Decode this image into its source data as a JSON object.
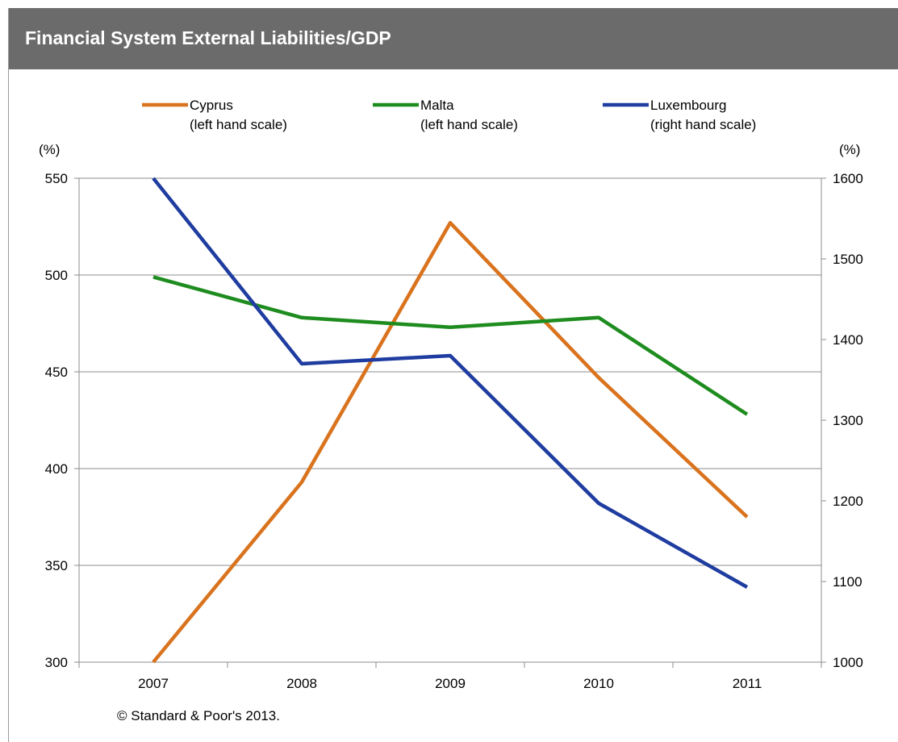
{
  "header": {
    "title": "Financial System External Liabilities/GDP"
  },
  "source": "© Standard & Poor's 2013.",
  "chart_data": {
    "type": "line",
    "title": "Financial System External Liabilities/GDP",
    "categories": [
      "2007",
      "2008",
      "2009",
      "2010",
      "2011"
    ],
    "y_left": {
      "unit": "(%)",
      "ylim": [
        300,
        550
      ],
      "ticks": [
        300,
        350,
        400,
        450,
        500,
        550
      ]
    },
    "y_right": {
      "unit": "(%)",
      "ylim": [
        1000,
        1600
      ],
      "ticks": [
        1000,
        1100,
        1200,
        1300,
        1400,
        1500,
        1600
      ]
    },
    "grid": true,
    "legend_position": "top",
    "series": [
      {
        "name": "Cyprus",
        "scale_note": "(left hand scale)",
        "axis": "left",
        "color": "#D9731E",
        "values": [
          300,
          393,
          527,
          447,
          375
        ]
      },
      {
        "name": "Malta",
        "scale_note": "(left hand scale)",
        "axis": "left",
        "color": "#1E8C1E",
        "values": [
          499,
          478,
          473,
          478,
          428
        ]
      },
      {
        "name": "Luxembourg",
        "scale_note": "(right hand scale)",
        "axis": "right",
        "color": "#1F3DA0",
        "values": [
          1600,
          1370,
          1380,
          1197,
          1093
        ]
      }
    ]
  }
}
